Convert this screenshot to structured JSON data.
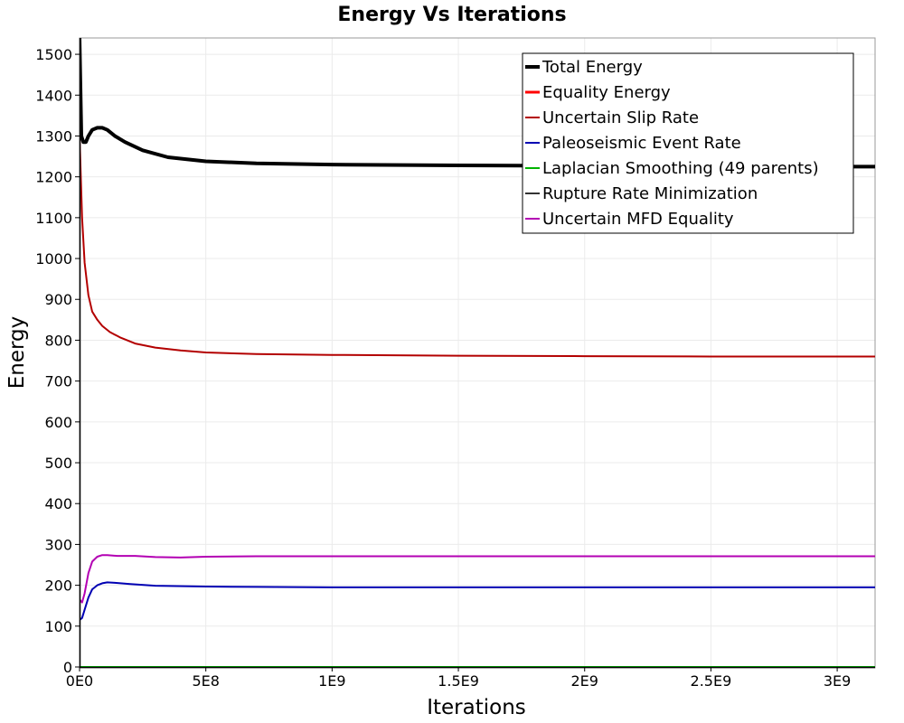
{
  "chart_data": {
    "type": "line",
    "title": "Energy Vs Iterations",
    "xlabel": "Iterations",
    "ylabel": "Energy",
    "xlim": [
      0,
      3150000000
    ],
    "ylim": [
      0,
      1540
    ],
    "x_ticks": [
      0,
      500000000,
      1000000000,
      1500000000,
      2000000000,
      2500000000,
      3000000000
    ],
    "x_tick_labels": [
      "0E0",
      "5E8",
      "1E9",
      "1.5E9",
      "2E9",
      "2.5E9",
      "3E9"
    ],
    "y_ticks": [
      0,
      100,
      200,
      300,
      400,
      500,
      600,
      700,
      800,
      900,
      1000,
      1100,
      1200,
      1300,
      1400,
      1500
    ],
    "y_tick_labels": [
      "0",
      "100",
      "200",
      "300",
      "400",
      "500",
      "600",
      "700",
      "800",
      "900",
      "1000",
      "1100",
      "1200",
      "1300",
      "1400",
      "1500"
    ],
    "grid": true,
    "legend_position": "top-right",
    "series": [
      {
        "name": "Total Energy",
        "color": "#000000",
        "width": 4,
        "x": [
          0,
          7000000,
          15000000,
          25000000,
          35000000,
          50000000,
          70000000,
          90000000,
          110000000,
          140000000,
          180000000,
          250000000,
          350000000,
          500000000,
          700000000,
          1000000000,
          1500000000,
          2000000000,
          2500000000,
          3000000000,
          3150000000
        ],
        "y": [
          1540,
          1300,
          1285,
          1285,
          1300,
          1315,
          1320,
          1320,
          1315,
          1300,
          1285,
          1265,
          1248,
          1238,
          1233,
          1230,
          1228,
          1227,
          1226,
          1225,
          1225
        ]
      },
      {
        "name": "Equality Energy",
        "color": "#ff0000",
        "width": 3,
        "x": [
          0,
          7000000,
          15000000,
          25000000,
          35000000,
          50000000,
          70000000,
          90000000,
          110000000,
          140000000,
          180000000,
          250000000,
          350000000,
          500000000,
          700000000,
          1000000000,
          1500000000,
          2000000000,
          2500000000,
          3000000000,
          3150000000
        ],
        "y": [
          1540,
          1300,
          1285,
          1285,
          1300,
          1315,
          1320,
          1320,
          1315,
          1300,
          1285,
          1265,
          1248,
          1238,
          1233,
          1230,
          1228,
          1227,
          1226,
          1225,
          1225
        ]
      },
      {
        "name": "Uncertain Slip Rate",
        "color": "#b30000",
        "width": 2,
        "x": [
          0,
          10000000,
          20000000,
          35000000,
          50000000,
          70000000,
          90000000,
          120000000,
          160000000,
          220000000,
          300000000,
          400000000,
          500000000,
          700000000,
          1000000000,
          1500000000,
          2000000000,
          2500000000,
          3000000000,
          3150000000
        ],
        "y": [
          1300,
          1100,
          990,
          910,
          870,
          850,
          835,
          820,
          807,
          792,
          782,
          775,
          770,
          766,
          764,
          762,
          761,
          760,
          760,
          760
        ]
      },
      {
        "name": "Paleoseismic Event Rate",
        "color": "#0000b3",
        "width": 2,
        "x": [
          0,
          10000000,
          20000000,
          35000000,
          50000000,
          70000000,
          90000000,
          110000000,
          140000000,
          200000000,
          300000000,
          500000000,
          700000000,
          1000000000,
          1500000000,
          2000000000,
          2500000000,
          3000000000,
          3150000000
        ],
        "y": [
          115,
          120,
          140,
          170,
          190,
          200,
          205,
          207,
          206,
          203,
          199,
          197,
          196,
          195,
          195,
          195,
          195,
          195,
          195
        ]
      },
      {
        "name": "Laplacian Smoothing (49 parents)",
        "color": "#00b300",
        "width": 2,
        "x": [
          0,
          3150000000
        ],
        "y": [
          0,
          0
        ]
      },
      {
        "name": "Rupture Rate Minimization",
        "color": "#333333",
        "width": 2,
        "x": [
          0,
          3150000000
        ],
        "y": [
          0,
          0
        ]
      },
      {
        "name": "Uncertain MFD Equality",
        "color": "#b300b3",
        "width": 2,
        "x": [
          0,
          10000000,
          20000000,
          35000000,
          50000000,
          70000000,
          90000000,
          110000000,
          150000000,
          220000000,
          300000000,
          400000000,
          500000000,
          700000000,
          1000000000,
          1500000000,
          2000000000,
          2500000000,
          3000000000,
          3150000000
        ],
        "y": [
          165,
          158,
          180,
          230,
          258,
          270,
          274,
          274,
          272,
          272,
          269,
          268,
          270,
          271,
          271,
          271,
          271,
          271,
          271,
          271
        ]
      }
    ]
  }
}
